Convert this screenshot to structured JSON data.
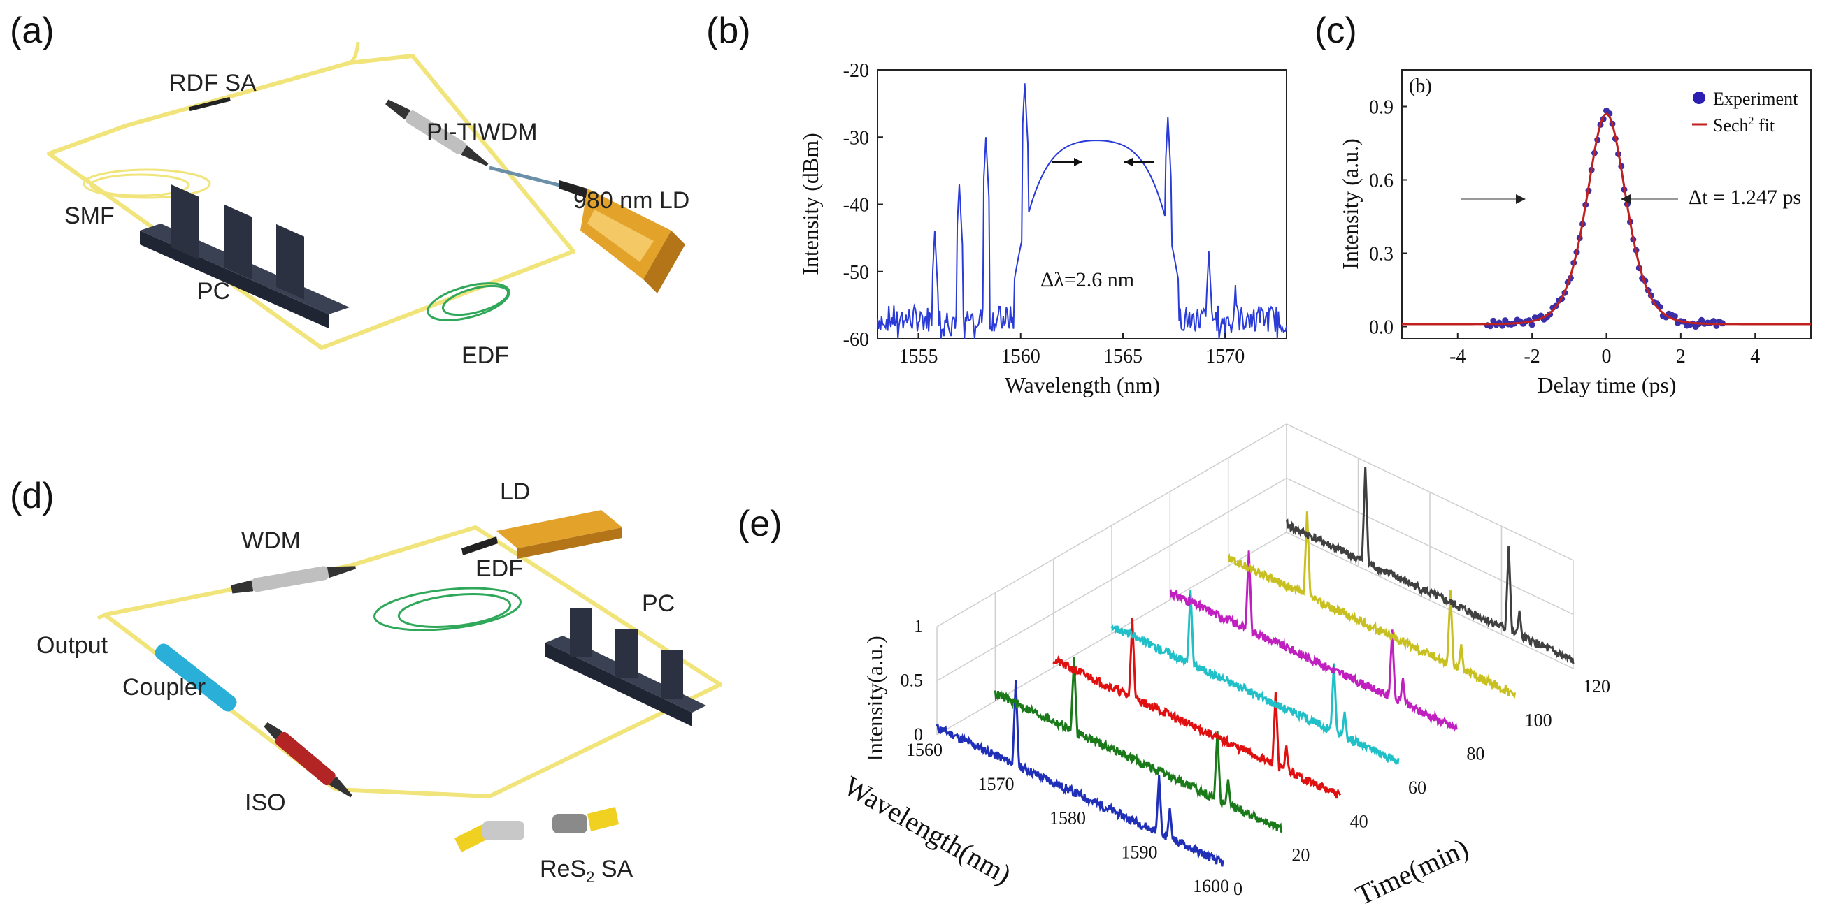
{
  "panels": {
    "a": {
      "label": "(a)",
      "components": {
        "rdf_sa": "RDF SA",
        "pi_tiwdm": "PI-TIWDM",
        "ld": "980 nm LD",
        "smf": "SMF",
        "pc": "PC",
        "edf": "EDF"
      }
    },
    "b": {
      "label": "(b)",
      "ylabel": "Intensity (dBm)",
      "xlabel": "Wavelength (nm)",
      "annotation": "Δλ=2.6 nm",
      "yticks": [
        "-20",
        "-30",
        "-40",
        "-50",
        "-60"
      ],
      "xticks": [
        "1555",
        "1560",
        "1565",
        "1570"
      ]
    },
    "c": {
      "label": "(c)",
      "inner_label": "(b)",
      "ylabel": "Intensity (a.u.)",
      "xlabel": "Delay time (ps)",
      "legend_experiment": "Experiment",
      "legend_fit": "Sech",
      "legend_fit_sup": "2",
      "legend_fit_suffix": " fit",
      "annotation": "Δt = 1.247 ps",
      "yticks": [
        "0.0",
        "0.3",
        "0.6",
        "0.9"
      ],
      "xticks": [
        "-4",
        "-2",
        "0",
        "2",
        "4"
      ]
    },
    "d": {
      "label": "(d)",
      "components": {
        "ld": "LD",
        "wdm": "WDM",
        "edf": "EDF",
        "pc": "PC",
        "output": "Output",
        "coupler": "Coupler",
        "iso": "ISO",
        "sa_prefix": "ReS",
        "sa_sub": "2",
        "sa_suffix": " SA"
      }
    },
    "e": {
      "label": "(e)",
      "zlabel": "Intensity(a.u.)",
      "xlabel": "Wavelength(nm)",
      "ylabel": "Time(min)",
      "zticks": [
        "0",
        "0.5",
        "1"
      ],
      "wavelength_ticks": [
        "1560",
        "1570",
        "1580",
        "1590",
        "1600"
      ],
      "time_ticks": [
        "0",
        "20",
        "40",
        "60",
        "80",
        "100",
        "120"
      ]
    }
  },
  "chart_data": [
    {
      "id": "b",
      "type": "line",
      "title": "",
      "xlabel": "Wavelength (nm)",
      "ylabel": "Intensity (dBm)",
      "xlim": [
        1553,
        1573
      ],
      "ylim": [
        -60,
        -20
      ],
      "baseline_dbm": -57,
      "envelope": {
        "center": 1563.7,
        "peak": -30.5,
        "halfwidth": 3.5
      },
      "sidebands": [
        {
          "x": 1555.8,
          "y": -44
        },
        {
          "x": 1557.0,
          "y": -37
        },
        {
          "x": 1558.3,
          "y": -30
        },
        {
          "x": 1560.2,
          "y": -22
        },
        {
          "x": 1567.2,
          "y": -27
        },
        {
          "x": 1569.2,
          "y": -47
        },
        {
          "x": 1570.5,
          "y": -52
        }
      ],
      "annotation": "Δλ=2.6 nm"
    },
    {
      "id": "c",
      "type": "scatter",
      "xlabel": "Delay time (ps)",
      "ylabel": "Intensity (a.u.)",
      "xlim": [
        -5.5,
        5.5
      ],
      "ylim": [
        -0.05,
        1.05
      ],
      "series": [
        {
          "name": "Experiment",
          "color": "#3a2fa8",
          "kind": "points"
        },
        {
          "name": "Sech2 fit",
          "color": "#c02020",
          "kind": "line"
        }
      ],
      "fit": {
        "peak": 0.87,
        "center": 0.0,
        "fwhm_ps": 1.247,
        "offset": 0.01
      },
      "annotation": "Δt = 1.247 ps"
    },
    {
      "id": "e",
      "type": "line",
      "xlabel": "Wavelength(nm)",
      "ylabel": "Time(min)",
      "zlabel": "Intensity(a.u.)",
      "wavelength_range": [
        1560,
        1600
      ],
      "time_range": [
        0,
        120
      ],
      "series": [
        {
          "name": "0 min",
          "color": "#1f2fb8",
          "peaks": [
            {
              "x": 1571,
              "y": 0.85
            },
            {
              "x": 1591,
              "y": 0.6
            },
            {
              "x": 1592.5,
              "y": 0.35
            }
          ]
        },
        {
          "name": "20 min",
          "color": "#1a7a1a",
          "peaks": [
            {
              "x": 1571,
              "y": 0.75
            },
            {
              "x": 1591,
              "y": 0.7
            },
            {
              "x": 1592.5,
              "y": 0.3
            }
          ]
        },
        {
          "name": "40 min",
          "color": "#e01010",
          "peaks": [
            {
              "x": 1571,
              "y": 0.8
            },
            {
              "x": 1591,
              "y": 0.75
            },
            {
              "x": 1592.5,
              "y": 0.3
            }
          ]
        },
        {
          "name": "60 min",
          "color": "#20c0c8",
          "peaks": [
            {
              "x": 1571,
              "y": 0.75
            },
            {
              "x": 1591,
              "y": 0.7
            },
            {
              "x": 1592.5,
              "y": 0.3
            }
          ]
        },
        {
          "name": "80 min",
          "color": "#c020c0",
          "peaks": [
            {
              "x": 1571,
              "y": 0.8
            },
            {
              "x": 1591,
              "y": 0.7
            },
            {
              "x": 1592.5,
              "y": 0.3
            }
          ]
        },
        {
          "name": "100 min",
          "color": "#c8c020",
          "peaks": [
            {
              "x": 1571,
              "y": 0.85
            },
            {
              "x": 1591,
              "y": 0.75
            },
            {
              "x": 1592.5,
              "y": 0.3
            }
          ]
        },
        {
          "name": "120 min",
          "color": "#404040",
          "peaks": [
            {
              "x": 1571,
              "y": 0.95
            },
            {
              "x": 1591,
              "y": 0.85
            },
            {
              "x": 1592.5,
              "y": 0.3
            }
          ]
        }
      ]
    }
  ]
}
